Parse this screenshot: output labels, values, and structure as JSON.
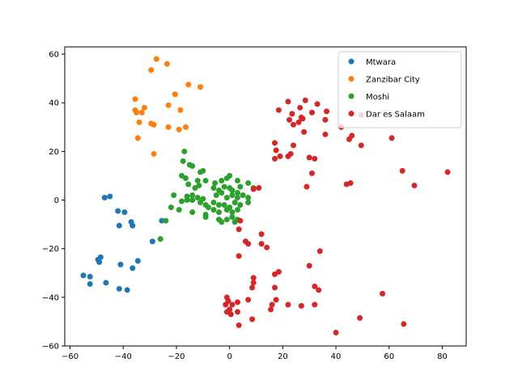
{
  "chart_data": {
    "type": "scatter",
    "title": "",
    "xlabel": "",
    "ylabel": "",
    "xlim": [
      -62,
      89
    ],
    "ylim": [
      -60,
      63
    ],
    "xticks": [
      -60,
      -40,
      -20,
      0,
      20,
      40,
      60,
      80
    ],
    "yticks": [
      -60,
      -40,
      -20,
      0,
      20,
      40,
      60
    ],
    "grid": false,
    "legend_position": "top-right",
    "series": [
      {
        "name": "Mtwara",
        "color": "#1f77b4",
        "points": [
          [
            -47,
            1
          ],
          [
            -45,
            1.5
          ],
          [
            -42,
            -4.5
          ],
          [
            -39.5,
            -5
          ],
          [
            -41.5,
            -10.5
          ],
          [
            -37,
            -9
          ],
          [
            -36.5,
            -10.5
          ],
          [
            -25.5,
            -8.5
          ],
          [
            -29,
            -17
          ],
          [
            -34.5,
            -25
          ],
          [
            -36.5,
            -28
          ],
          [
            -41,
            -26.5
          ],
          [
            -48.5,
            -23.5
          ],
          [
            -49.5,
            -24.5
          ],
          [
            -49,
            -25.5
          ],
          [
            -52.5,
            -31.5
          ],
          [
            -55,
            -31
          ],
          [
            -52.5,
            -34.5
          ],
          [
            -46.5,
            -34
          ],
          [
            -41.5,
            -36.5
          ],
          [
            -38.5,
            -37
          ]
        ]
      },
      {
        "name": "Zanzibar City",
        "color": "#ff7f0e",
        "points": [
          [
            -27.5,
            58
          ],
          [
            -23.5,
            56
          ],
          [
            -29.5,
            53.5
          ],
          [
            -15.5,
            47.5
          ],
          [
            -11,
            46.5
          ],
          [
            -20.5,
            43.5
          ],
          [
            -35.5,
            41.5
          ],
          [
            -23,
            39
          ],
          [
            -32,
            38
          ],
          [
            -35.5,
            37
          ],
          [
            -35,
            36
          ],
          [
            -33,
            36
          ],
          [
            -18.5,
            37
          ],
          [
            -29.5,
            31.5
          ],
          [
            -28.5,
            31
          ],
          [
            -34,
            32
          ],
          [
            -23,
            30
          ],
          [
            -19,
            29
          ],
          [
            -16.5,
            30
          ],
          [
            -34.5,
            25.5
          ],
          [
            -28.5,
            19
          ]
        ]
      },
      {
        "name": "Moshi",
        "color": "#2ca02c",
        "points": [
          [
            -17,
            20
          ],
          [
            -17.5,
            16
          ],
          [
            -15,
            14.5
          ],
          [
            -14,
            14
          ],
          [
            -10,
            12
          ],
          [
            -11,
            11.5
          ],
          [
            -18,
            10
          ],
          [
            -16.5,
            9
          ],
          [
            -12,
            8
          ],
          [
            -9,
            8
          ],
          [
            -5.5,
            7
          ],
          [
            -3,
            8
          ],
          [
            -1,
            9
          ],
          [
            0,
            10
          ],
          [
            3,
            8
          ],
          [
            7,
            7
          ],
          [
            9,
            5
          ],
          [
            4,
            5.5
          ],
          [
            -15.5,
            6.5
          ],
          [
            -13,
            5
          ],
          [
            -11.5,
            6
          ],
          [
            -6,
            5
          ],
          [
            -4,
            4
          ],
          [
            -2,
            5.5
          ],
          [
            0,
            5
          ],
          [
            1,
            4
          ],
          [
            3,
            3
          ],
          [
            -21,
            2
          ],
          [
            -16,
            1.5
          ],
          [
            -14,
            2
          ],
          [
            -12,
            1
          ],
          [
            -10,
            0.5
          ],
          [
            -5,
            2
          ],
          [
            -3,
            3
          ],
          [
            -1,
            1
          ],
          [
            1,
            2
          ],
          [
            3,
            1
          ],
          [
            5,
            2
          ],
          [
            7,
            1
          ],
          [
            -18,
            -0.5
          ],
          [
            -16,
            0
          ],
          [
            -14,
            0
          ],
          [
            -11,
            -1
          ],
          [
            -9,
            -2
          ],
          [
            -6,
            -1
          ],
          [
            -4,
            -2
          ],
          [
            -2,
            -2
          ],
          [
            0,
            -3
          ],
          [
            2,
            -1
          ],
          [
            4,
            -2
          ],
          [
            7,
            -1
          ],
          [
            -22,
            -3
          ],
          [
            -19,
            -4
          ],
          [
            -14,
            -5
          ],
          [
            -8,
            -3
          ],
          [
            -6,
            -4
          ],
          [
            -4,
            -5
          ],
          [
            -1,
            -4
          ],
          [
            1,
            -5
          ],
          [
            3,
            -4
          ],
          [
            -9,
            -6
          ],
          [
            -9,
            -7
          ],
          [
            -4,
            -8
          ],
          [
            -3,
            -9
          ],
          [
            -1,
            -8
          ],
          [
            1,
            -7
          ],
          [
            2,
            -9
          ],
          [
            3,
            -8
          ],
          [
            -24,
            -8.5
          ],
          [
            -26,
            -16
          ]
        ]
      },
      {
        "name": "Dar es Salaam",
        "color": "#d62728",
        "points": [
          [
            28.5,
            41
          ],
          [
            22,
            40.5
          ],
          [
            33,
            39.5
          ],
          [
            26.5,
            38
          ],
          [
            18.5,
            37
          ],
          [
            36.5,
            36.5
          ],
          [
            31,
            36
          ],
          [
            49.5,
            35
          ],
          [
            23.5,
            35.5
          ],
          [
            27,
            34
          ],
          [
            26,
            32
          ],
          [
            36,
            33
          ],
          [
            22.5,
            33
          ],
          [
            24,
            31
          ],
          [
            27.5,
            33.5
          ],
          [
            42,
            30
          ],
          [
            36,
            27
          ],
          [
            28,
            28
          ],
          [
            46,
            26.5
          ],
          [
            45,
            25
          ],
          [
            61,
            25.5
          ],
          [
            17,
            23.5
          ],
          [
            24,
            22.5
          ],
          [
            49.5,
            22.5
          ],
          [
            17.5,
            20.5
          ],
          [
            23,
            19
          ],
          [
            22,
            18
          ],
          [
            19,
            18
          ],
          [
            30,
            17.5
          ],
          [
            32,
            17
          ],
          [
            17,
            17
          ],
          [
            65,
            12
          ],
          [
            31,
            11
          ],
          [
            82,
            11.5
          ],
          [
            44,
            6.5
          ],
          [
            45.5,
            7
          ],
          [
            69.5,
            6
          ],
          [
            29,
            5.5
          ],
          [
            11,
            5
          ],
          [
            9,
            4.5
          ],
          [
            4,
            -8.5
          ],
          [
            3.5,
            -12
          ],
          [
            6,
            -17
          ],
          [
            7,
            -18
          ],
          [
            12,
            -14
          ],
          [
            12,
            -18
          ],
          [
            14,
            -19.5
          ],
          [
            3.5,
            -23
          ],
          [
            34,
            -21
          ],
          [
            30,
            -27
          ],
          [
            18.5,
            -29.5
          ],
          [
            17,
            -30.5
          ],
          [
            9,
            -32
          ],
          [
            9,
            -34
          ],
          [
            8.5,
            -36
          ],
          [
            17,
            -36
          ],
          [
            32,
            -35.5
          ],
          [
            33.5,
            -37
          ],
          [
            57.5,
            -38.5
          ],
          [
            -1,
            -40
          ],
          [
            -0.5,
            -41.5
          ],
          [
            -1.5,
            -43
          ],
          [
            1,
            -43
          ],
          [
            3,
            -42
          ],
          [
            7,
            -41
          ],
          [
            17.5,
            -41
          ],
          [
            16,
            -43
          ],
          [
            15.5,
            -45
          ],
          [
            22,
            -43
          ],
          [
            27,
            -43.5
          ],
          [
            32,
            -43
          ],
          [
            0,
            -45
          ],
          [
            -1,
            -46
          ],
          [
            0.5,
            -47
          ],
          [
            3,
            -46
          ],
          [
            8.5,
            -49
          ],
          [
            49,
            -48.5
          ],
          [
            3.5,
            -51.5
          ],
          [
            40,
            -54.5
          ],
          [
            65.5,
            -51
          ]
        ]
      }
    ]
  }
}
